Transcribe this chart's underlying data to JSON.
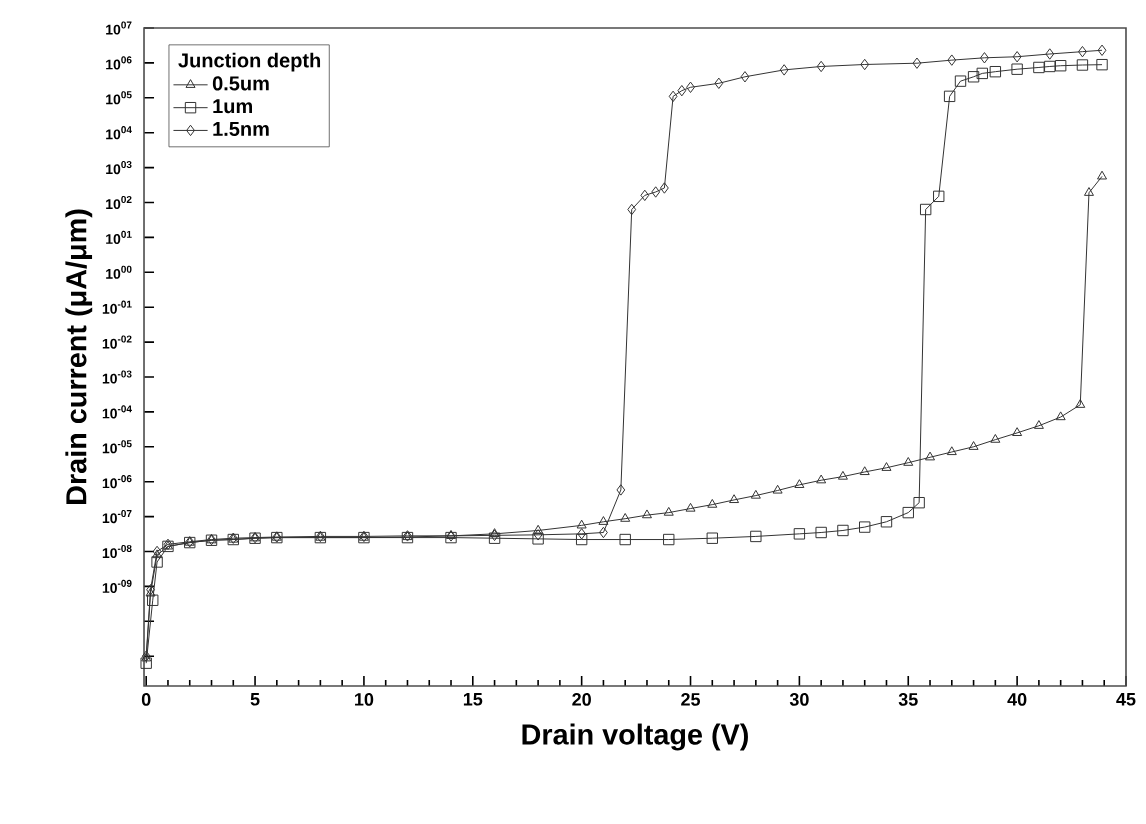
{
  "chart_data": {
    "type": "line",
    "xlabel": "Drain voltage (V)",
    "ylabel": "Drain current (μA/μm)",
    "legend_title": "Junction depth",
    "legend": "top left",
    "log": "y",
    "grid": false,
    "line_style": "solid",
    "xlim": [
      -0.1,
      45
    ],
    "xticks": [
      0,
      5,
      10,
      15,
      20,
      25,
      30,
      35,
      40,
      45
    ],
    "ylim": [
      1.4e-12,
      10000000.0
    ],
    "yticks": [
      {
        "value": 10000000.0,
        "label": "10$^{07}$"
      },
      {
        "value": 1000000.0,
        "label": "10$^{06}$"
      },
      {
        "value": 100000.0,
        "label": "10$^{05}$"
      },
      {
        "value": 10000.0,
        "label": "10$^{04}$"
      },
      {
        "value": 1000.0,
        "label": "10$^{03}$"
      },
      {
        "value": 100.0,
        "label": "10$^{02}$"
      },
      {
        "value": 10.0,
        "label": "10$^{01}$"
      },
      {
        "value": 1,
        "label": "10$^{00}$"
      },
      {
        "value": 0.1,
        "label": "10$^{-01}$"
      },
      {
        "value": 0.01,
        "label": "10$^{-02}$"
      },
      {
        "value": 0.001,
        "label": "10$^{-03}$"
      },
      {
        "value": 0.0001,
        "label": "10$^{-04}$"
      },
      {
        "value": 1e-05,
        "label": "10$^{-05}$"
      },
      {
        "value": 1e-06,
        "label": "10$^{-06}$"
      },
      {
        "value": 1e-07,
        "label": "10$^{-07}$"
      },
      {
        "value": 1e-08,
        "label": "10$^{-08}$"
      },
      {
        "value": 1e-09,
        "label": "10$^{-09}$"
      },
      {
        "value": 1e-10,
        "label": null
      },
      {
        "value": 1e-11,
        "label": null
      }
    ],
    "series": [
      {
        "name": "0.5um",
        "color": "#333333",
        "marker": "triangle",
        "x": [
          0,
          0.2,
          0.5,
          1,
          2,
          3,
          4,
          5,
          6,
          8,
          10,
          12,
          14,
          16,
          18,
          20,
          21,
          22,
          23,
          24,
          25,
          26,
          27,
          28,
          29,
          30,
          31,
          32,
          33,
          34,
          35,
          36,
          37,
          38,
          39,
          40,
          41,
          42,
          42.9,
          43.3,
          43.9
        ],
        "values": [
          8.7e-12,
          6.3e-10,
          7.9e-09,
          1.4e-08,
          1.8e-08,
          2.1e-08,
          2.2e-08,
          2.4e-08,
          2.5e-08,
          2.5e-08,
          2.5e-08,
          2.6e-08,
          2.8e-08,
          3.2e-08,
          4e-08,
          5.6e-08,
          7.1e-08,
          8.7e-08,
          1.1e-07,
          1.3e-07,
          1.7e-07,
          2.2e-07,
          3e-07,
          4e-07,
          5.6e-07,
          8.1e-07,
          1.1e-06,
          1.4e-06,
          1.9e-06,
          2.5e-06,
          3.5e-06,
          5e-06,
          7.1e-06,
          1e-05,
          1.6e-05,
          2.5e-05,
          4e-05,
          7.1e-05,
          0.00016,
          190,
          560
        ]
      },
      {
        "name": "1um",
        "color": "#333333",
        "marker": "square",
        "x": [
          0,
          0.3,
          0.5,
          1,
          2,
          3,
          4,
          5,
          6,
          8,
          10,
          12,
          14,
          16,
          18,
          20,
          22,
          24,
          26,
          28,
          30,
          31,
          32,
          33,
          34,
          35,
          35.5,
          35.8,
          36.4,
          36.9,
          37.4,
          38,
          38.4,
          39,
          40,
          41,
          41.5,
          42,
          43,
          43.9
        ],
        "values": [
          6.3e-12,
          4e-10,
          5e-09,
          1.4e-08,
          1.8e-08,
          2.1e-08,
          2.2e-08,
          2.4e-08,
          2.5e-08,
          2.5e-08,
          2.5e-08,
          2.5e-08,
          2.5e-08,
          2.4e-08,
          2.3e-08,
          2.2e-08,
          2.2e-08,
          2.2e-08,
          2.4e-08,
          2.7e-08,
          3.2e-08,
          3.5e-08,
          4e-08,
          5e-08,
          7.1e-08,
          1.3e-07,
          2.5e-07,
          63,
          150,
          110000.0,
          300000.0,
          400000.0,
          500000.0,
          560000.0,
          660000.0,
          740000.0,
          790000.0,
          830000.0,
          870000.0,
          890000.0
        ]
      },
      {
        "name": "1.5nm",
        "color": "#333333",
        "marker": "diamond",
        "x": [
          0,
          0.2,
          0.5,
          1,
          2,
          3,
          4,
          5,
          6,
          8,
          10,
          12,
          14,
          16,
          18,
          20,
          21,
          21.8,
          22.3,
          22.9,
          23.4,
          23.8,
          24.2,
          24.6,
          25,
          26.3,
          27.5,
          29.3,
          31,
          33,
          35.4,
          37,
          38.5,
          40,
          41.5,
          43,
          43.9
        ],
        "values": [
          1e-11,
          8e-10,
          1e-08,
          1.6e-08,
          1.9e-08,
          2.2e-08,
          2.4e-08,
          2.5e-08,
          2.6e-08,
          2.7e-08,
          2.7e-08,
          2.8e-08,
          2.8e-08,
          2.9e-08,
          3e-08,
          3.2e-08,
          3.5e-08,
          5.8e-07,
          63,
          160,
          200,
          260,
          110000.0,
          160000.0,
          200000.0,
          260000.0,
          400000.0,
          630000.0,
          790000.0,
          900000.0,
          980000.0,
          1200000.0,
          1400000.0,
          1500000.0,
          1800000.0,
          2100000.0,
          2300000.0
        ]
      }
    ]
  }
}
